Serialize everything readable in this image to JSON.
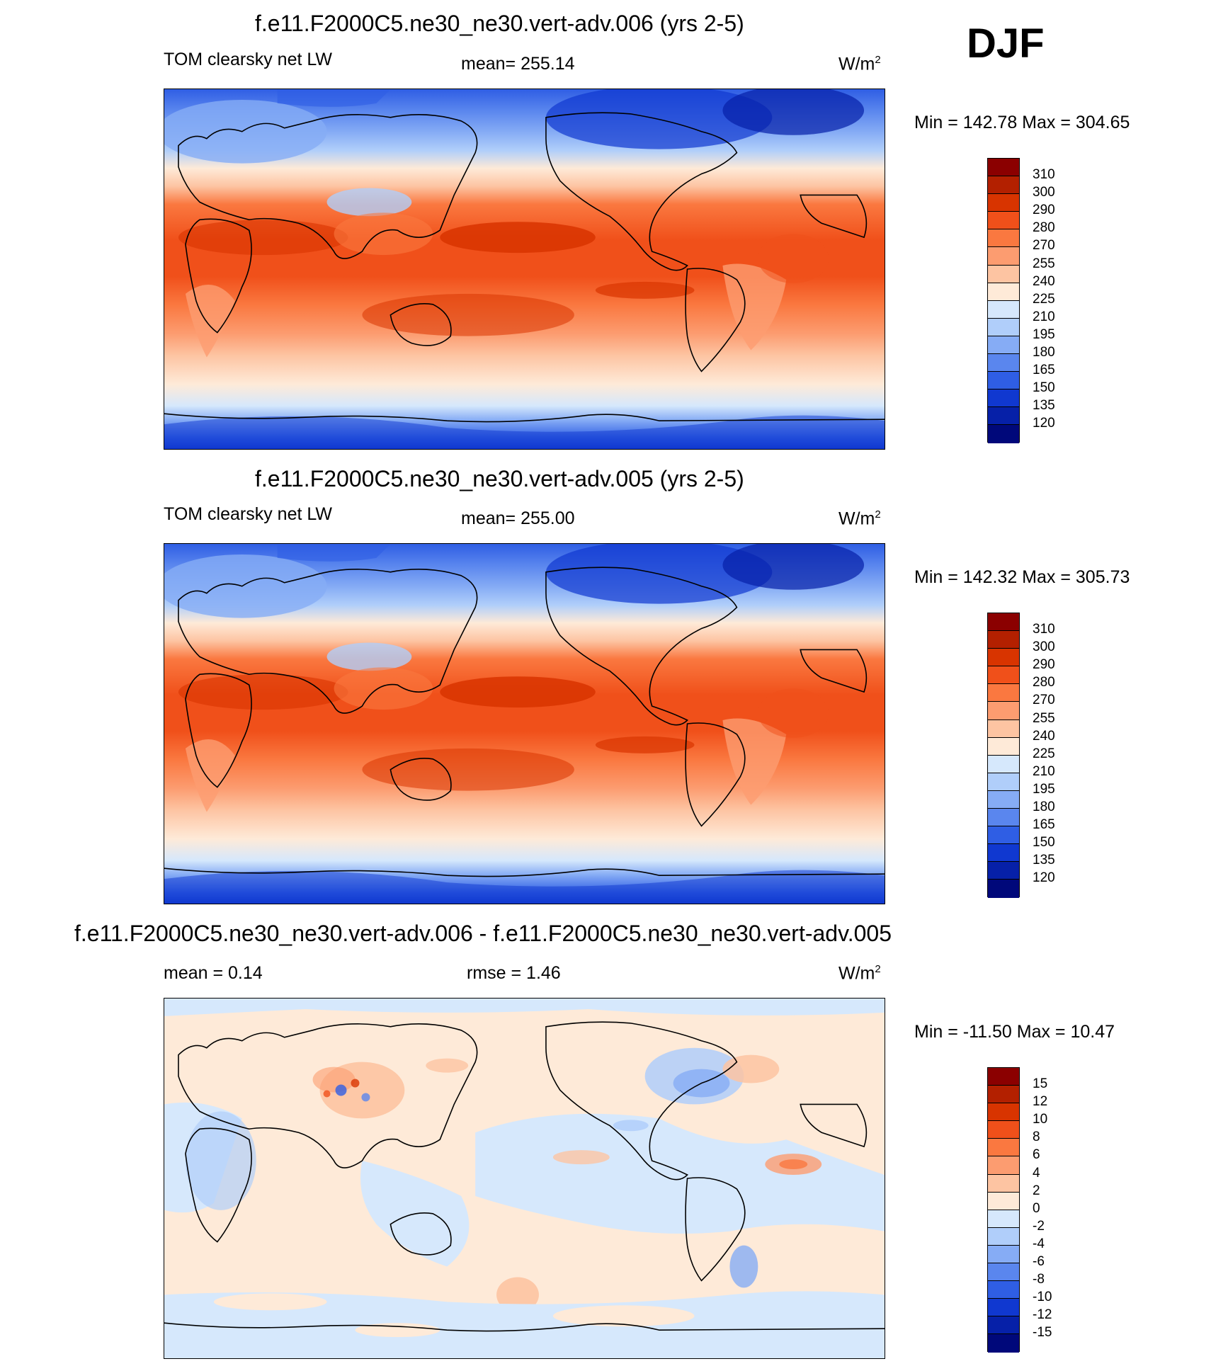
{
  "season": "DJF",
  "panels": [
    {
      "title": "f.e11.F2000C5.ne30_ne30.vert-adv.006 (yrs 2-5)",
      "left_label": "TOM clearsky net LW",
      "center_label": "mean= 255.14",
      "units": "W/m",
      "units_sup": "2",
      "minmax": "Min = 142.78 Max = 304.65",
      "colorbar": {
        "labels": [
          "310",
          "300",
          "290",
          "280",
          "270",
          "255",
          "240",
          "225",
          "210",
          "195",
          "180",
          "165",
          "150",
          "135",
          "120"
        ],
        "colors": [
          "#8b0000",
          "#b32000",
          "#d83400",
          "#f0501a",
          "#fa7840",
          "#fc9c70",
          "#fdc4a2",
          "#feead8",
          "#d6e8fc",
          "#b0cefa",
          "#86acf5",
          "#5a86ee",
          "#2f5ee4",
          "#1038d0",
          "#0620a8",
          "#00087a"
        ]
      },
      "map_type": "absolute"
    },
    {
      "title": "f.e11.F2000C5.ne30_ne30.vert-adv.005 (yrs 2-5)",
      "left_label": "TOM clearsky net LW",
      "center_label": "mean= 255.00",
      "units": "W/m",
      "units_sup": "2",
      "minmax": "Min = 142.32 Max = 305.73",
      "colorbar": {
        "labels": [
          "310",
          "300",
          "290",
          "280",
          "270",
          "255",
          "240",
          "225",
          "210",
          "195",
          "180",
          "165",
          "150",
          "135",
          "120"
        ],
        "colors": [
          "#8b0000",
          "#b32000",
          "#d83400",
          "#f0501a",
          "#fa7840",
          "#fc9c70",
          "#fdc4a2",
          "#feead8",
          "#d6e8fc",
          "#b0cefa",
          "#86acf5",
          "#5a86ee",
          "#2f5ee4",
          "#1038d0",
          "#0620a8",
          "#00087a"
        ]
      },
      "map_type": "absolute"
    },
    {
      "title": "f.e11.F2000C5.ne30_ne30.vert-adv.006 - f.e11.F2000C5.ne30_ne30.vert-adv.005",
      "left_label": "mean =   0.14",
      "center_label": "rmse =   1.46",
      "units": "W/m",
      "units_sup": "2",
      "minmax": "Min = -11.50 Max =  10.47",
      "colorbar": {
        "labels": [
          "15",
          "12",
          "10",
          "8",
          "6",
          "4",
          "2",
          "0",
          "-2",
          "-4",
          "-6",
          "-8",
          "-10",
          "-12",
          "-15"
        ],
        "colors": [
          "#8b0000",
          "#b32000",
          "#d83400",
          "#f0501a",
          "#fa7840",
          "#fc9c70",
          "#fdc4a2",
          "#feead8",
          "#d6e8fc",
          "#b0cefa",
          "#86acf5",
          "#5a86ee",
          "#2f5ee4",
          "#1038d0",
          "#0620a8",
          "#00087a"
        ]
      },
      "map_type": "difference"
    }
  ]
}
